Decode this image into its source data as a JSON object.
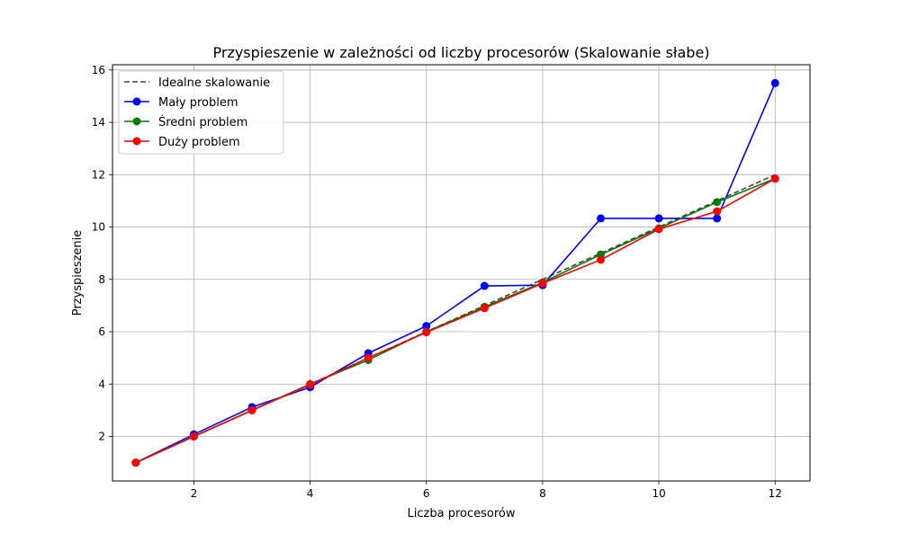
{
  "chart_data": {
    "type": "line",
    "title": "Przyspieszenie w zależności od liczby procesorów (Skalowanie słabe)",
    "xlabel": "Liczba procesorów",
    "ylabel": "Przyspieszenie",
    "xlim": [
      0.6,
      12.6
    ],
    "ylim": [
      0.3,
      16.2
    ],
    "xticks": [
      2,
      4,
      6,
      8,
      10,
      12
    ],
    "yticks": [
      2,
      4,
      6,
      8,
      10,
      12,
      14,
      16
    ],
    "grid": true,
    "legend_position": "upper-left",
    "x": [
      1,
      2,
      3,
      4,
      5,
      6,
      7,
      8,
      9,
      10,
      11,
      12
    ],
    "series": [
      {
        "name": "Idealne skalowanie",
        "color": "#444444",
        "style": "dashed",
        "marker": "none",
        "values": [
          1,
          2,
          3,
          4,
          5,
          6,
          7,
          8,
          9,
          10,
          11,
          12
        ]
      },
      {
        "name": "Mały problem",
        "color": "#0000ff",
        "style": "solid",
        "marker": "circle",
        "values": [
          1.0,
          2.08,
          3.12,
          3.88,
          5.18,
          6.22,
          7.75,
          7.78,
          10.33,
          10.33,
          10.33,
          15.5
        ]
      },
      {
        "name": "Średni problem",
        "color": "#008000",
        "style": "solid",
        "marker": "circle",
        "values": [
          1.0,
          2.0,
          3.0,
          4.0,
          4.92,
          6.0,
          6.95,
          7.88,
          8.95,
          9.95,
          10.95,
          11.85
        ]
      },
      {
        "name": "Duży problem",
        "color": "#ff0000",
        "style": "solid",
        "marker": "circle",
        "values": [
          1.0,
          2.0,
          3.0,
          3.98,
          5.0,
          5.98,
          6.9,
          7.85,
          8.75,
          9.92,
          10.6,
          11.85
        ]
      }
    ]
  }
}
